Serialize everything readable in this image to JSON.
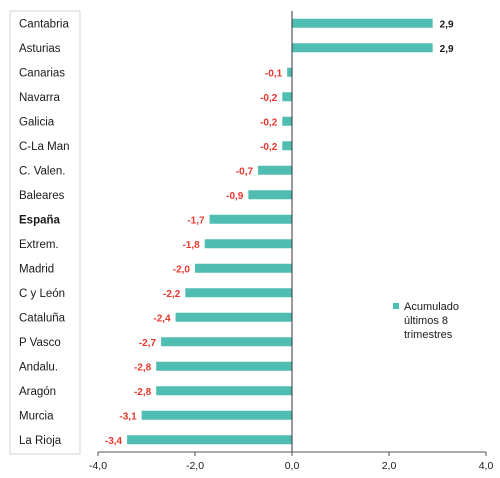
{
  "chart_data": {
    "type": "bar",
    "orientation": "horizontal",
    "categories": [
      "Cantabria",
      "Asturias",
      "Canarias",
      "Navarra",
      "Galicia",
      "C-La Man",
      "C. Valen.",
      "Baleares",
      "España",
      "Extrem.",
      "Madrid",
      "C y León",
      "Cataluña",
      "P Vasco",
      "Andalu.",
      "Aragón",
      "Murcia",
      "La Rioja"
    ],
    "bold_categories": [
      "España"
    ],
    "series": [
      {
        "name": "Acumulado\núltimos 8\ntrimestres",
        "values": [
          2.9,
          2.9,
          -0.1,
          -0.2,
          -0.2,
          -0.2,
          -0.7,
          -0.9,
          -1.7,
          -1.8,
          -2.0,
          -2.2,
          -2.4,
          -2.7,
          -2.8,
          -2.8,
          -3.1,
          -3.4
        ],
        "labels": [
          "2,9",
          "2,9",
          "-0,1",
          "-0,2",
          "-0,2",
          "-0,2",
          "-0,7",
          "-0,9",
          "-1,7",
          "-1,8",
          "-2,0",
          "-2,2",
          "-2,4",
          "-2,7",
          "-2,8",
          "-2,8",
          "-3,1",
          "-3,4"
        ]
      }
    ],
    "xlim": [
      -4.0,
      4.0
    ],
    "xticks": [
      -4.0,
      -2.0,
      0.0,
      2.0,
      4.0
    ],
    "xtick_labels": [
      "-4,0",
      "-2,0",
      "0,0",
      "2,0",
      "4,0"
    ],
    "legend": {
      "placement": "right-middle",
      "lines": [
        "Acumulado",
        "últimos 8",
        "trimestres"
      ]
    },
    "colors": {
      "bar": "#4fbdb1",
      "negative_label": "#e8372c",
      "positive_label": "#1a1a1a"
    },
    "grid": false
  }
}
